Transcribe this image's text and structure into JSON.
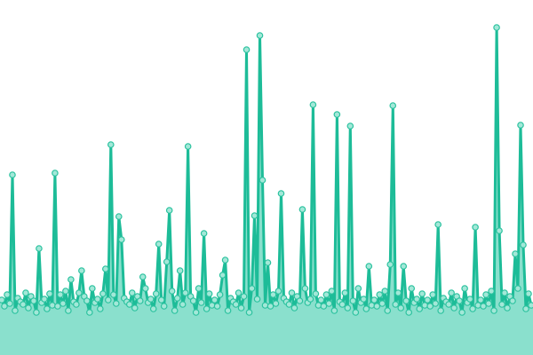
{
  "chart_data": {
    "type": "area",
    "title": "",
    "xlabel": "",
    "ylabel": "",
    "ylim": [
      0,
      400
    ],
    "grid": false,
    "legend": "none",
    "markers": true,
    "colors": {
      "line": "#1dbc98",
      "fill": "#8ae0cd",
      "marker_fill": "#a3e8d8",
      "marker_stroke": "#2cc29f"
    },
    "values": [
      62,
      55,
      68,
      58,
      203,
      50,
      64,
      60,
      57,
      70,
      53,
      66,
      61,
      48,
      120,
      59,
      63,
      52,
      69,
      56,
      205,
      55,
      68,
      58,
      72,
      50,
      85,
      60,
      57,
      70,
      95,
      66,
      61,
      48,
      75,
      59,
      63,
      52,
      69,
      97,
      62,
      237,
      68,
      58,
      156,
      130,
      64,
      60,
      57,
      70,
      53,
      66,
      61,
      88,
      75,
      59,
      63,
      52,
      69,
      125,
      62,
      55,
      105,
      163,
      72,
      50,
      64,
      95,
      57,
      70,
      235,
      66,
      61,
      48,
      75,
      59,
      137,
      52,
      69,
      56,
      62,
      55,
      68,
      90,
      107,
      50,
      64,
      60,
      57,
      70,
      53,
      66,
      344,
      48,
      75,
      157,
      63,
      360,
      197,
      56,
      104,
      55,
      68,
      58,
      72,
      182,
      64,
      60,
      57,
      70,
      53,
      66,
      61,
      164,
      75,
      59,
      63,
      282,
      69,
      56,
      62,
      55,
      68,
      58,
      72,
      50,
      271,
      60,
      57,
      70,
      53,
      258,
      61,
      48,
      75,
      59,
      63,
      52,
      100,
      56,
      62,
      55,
      68,
      58,
      72,
      50,
      102,
      281,
      57,
      70,
      53,
      100,
      61,
      48,
      75,
      59,
      63,
      52,
      69,
      56,
      62,
      55,
      68,
      58,
      147,
      50,
      64,
      60,
      57,
      70,
      53,
      66,
      61,
      48,
      75,
      59,
      63,
      52,
      144,
      56,
      62,
      55,
      68,
      58,
      72,
      50,
      369,
      140,
      57,
      70,
      53,
      66,
      61,
      114,
      75,
      259,
      124,
      52,
      69,
      56
    ]
  }
}
